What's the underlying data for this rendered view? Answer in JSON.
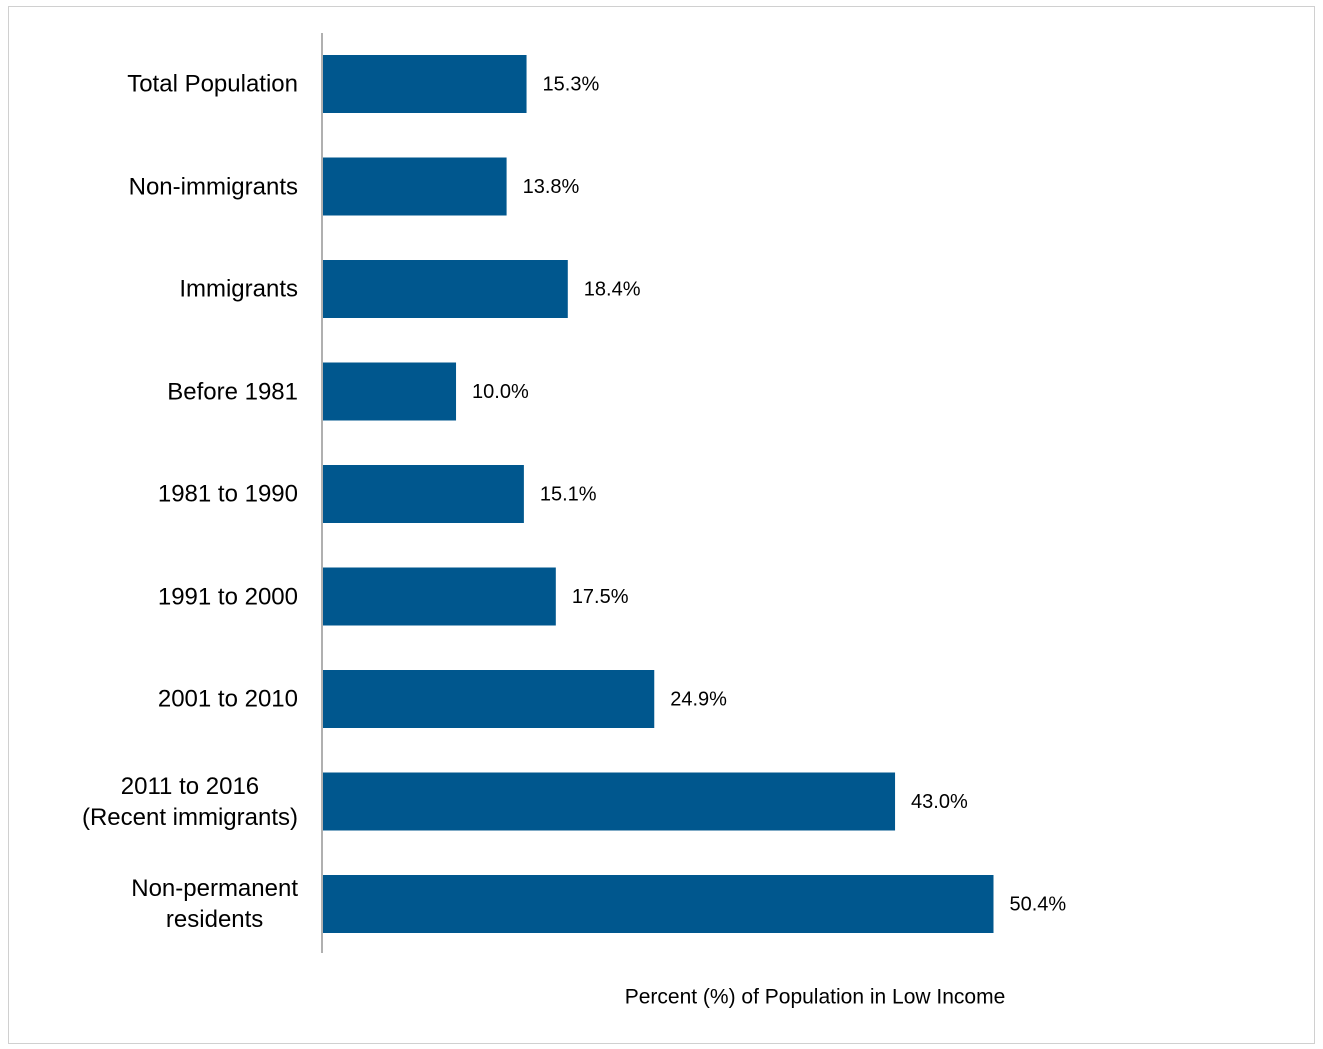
{
  "chart_data": {
    "type": "bar",
    "orientation": "horizontal",
    "x_label": "Percent (%) of Population in Low Income",
    "categories": [
      "Total Population",
      "Non-immigrants",
      "Immigrants",
      "Before 1981",
      "1981 to 1990",
      "1991 to 2000",
      "2001 to 2010",
      "2011 to 2016\n(Recent immigrants)",
      "Non-permanent\nresidents"
    ],
    "values": [
      15.3,
      13.8,
      18.4,
      10.0,
      15.1,
      17.5,
      24.9,
      43.0,
      50.4
    ],
    "value_labels": [
      "15.3%",
      "13.8%",
      "18.4%",
      "10.0%",
      "15.1%",
      "17.5%",
      "24.9%",
      "43.0%",
      "50.4%"
    ],
    "color": "#00578e",
    "xlim": [
      0,
      56
    ]
  }
}
